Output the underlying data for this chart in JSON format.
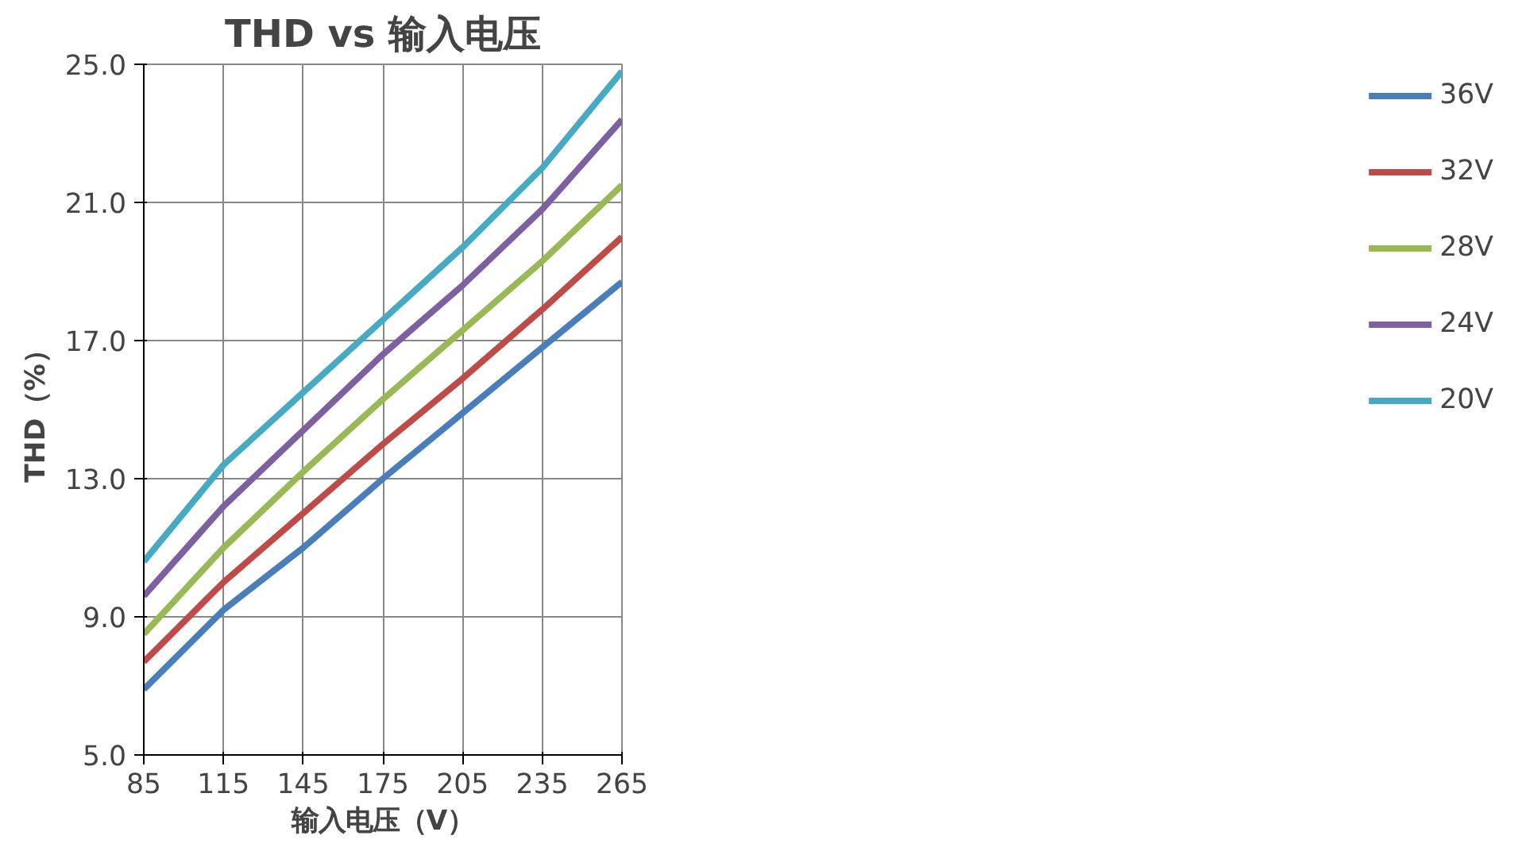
{
  "chart_data": {
    "type": "line",
    "title": "THD vs 输入电压",
    "xlabel": "输入电压（V）",
    "ylabel": "THD（%）",
    "x": [
      85,
      115,
      145,
      175,
      205,
      235,
      265
    ],
    "xlim": [
      85,
      265
    ],
    "xticks": [
      85,
      115,
      145,
      175,
      205,
      235,
      265
    ],
    "ylim": [
      5,
      25
    ],
    "yticks": [
      {
        "value": 5,
        "label": "5.0"
      },
      {
        "value": 9,
        "label": "9.0"
      },
      {
        "value": 13,
        "label": "13.0"
      },
      {
        "value": 17,
        "label": "17.0"
      },
      {
        "value": 21,
        "label": "21.0"
      },
      {
        "value": 25,
        "label": "25.0"
      }
    ],
    "grid": true,
    "legend": "right",
    "marker": "none",
    "line_style": "solid",
    "series": [
      {
        "name": "36V",
        "color": "#4a7ebb",
        "values": [
          6.9,
          9.2,
          11.0,
          13.0,
          14.9,
          16.8,
          18.7
        ]
      },
      {
        "name": "32V",
        "color": "#be4b48",
        "values": [
          7.7,
          10.0,
          12.0,
          14.0,
          15.9,
          17.9,
          20.0
        ]
      },
      {
        "name": "28V",
        "color": "#98b954",
        "values": [
          8.5,
          11.0,
          13.2,
          15.3,
          17.3,
          19.3,
          21.5
        ]
      },
      {
        "name": "24V",
        "color": "#7d60a0",
        "values": [
          9.6,
          12.2,
          14.4,
          16.6,
          18.6,
          20.8,
          23.4
        ]
      },
      {
        "name": "20V",
        "color": "#46aac5",
        "values": [
          10.6,
          13.4,
          15.5,
          17.6,
          19.7,
          22.0,
          24.8
        ]
      }
    ]
  }
}
